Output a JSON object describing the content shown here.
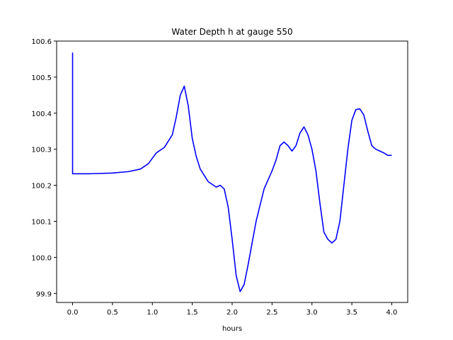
{
  "chart_data": {
    "type": "line",
    "title": "Water Depth h at gauge 550",
    "xlabel": "hours",
    "ylabel": "",
    "xlim": [
      -0.2,
      4.2
    ],
    "ylim": [
      99.875,
      100.6
    ],
    "xticks": [
      0.0,
      0.5,
      1.0,
      1.5,
      2.0,
      2.5,
      3.0,
      3.5,
      4.0
    ],
    "xtick_labels": [
      "0.0",
      "0.5",
      "1.0",
      "1.5",
      "2.0",
      "2.5",
      "3.0",
      "3.5",
      "4.0"
    ],
    "yticks": [
      99.9,
      100.0,
      100.1,
      100.2,
      100.3,
      100.4,
      100.5,
      100.6
    ],
    "ytick_labels": [
      "99.9",
      "100.0",
      "100.1",
      "100.2",
      "100.3",
      "100.4",
      "100.5",
      "100.6"
    ],
    "grid": false,
    "series": [
      {
        "color": "#0000ff",
        "x": [
          0.0,
          0.0,
          0.0,
          0.2,
          0.5,
          0.7,
          0.85,
          0.95,
          1.05,
          1.15,
          1.25,
          1.3,
          1.35,
          1.4,
          1.45,
          1.5,
          1.55,
          1.6,
          1.7,
          1.8,
          1.85,
          1.9,
          1.95,
          2.0,
          2.05,
          2.1,
          2.15,
          2.2,
          2.3,
          2.4,
          2.5,
          2.55,
          2.6,
          2.65,
          2.7,
          2.75,
          2.8,
          2.85,
          2.9,
          2.95,
          3.0,
          3.05,
          3.1,
          3.15,
          3.2,
          3.25,
          3.3,
          3.35,
          3.4,
          3.45,
          3.5,
          3.55,
          3.6,
          3.65,
          3.7,
          3.75,
          3.8,
          3.85,
          3.9,
          3.95,
          4.0
        ],
        "y": [
          100.568,
          100.232,
          100.232,
          100.232,
          100.234,
          100.238,
          100.245,
          100.26,
          100.29,
          100.305,
          100.34,
          100.39,
          100.45,
          100.475,
          100.42,
          100.33,
          100.28,
          100.245,
          100.21,
          100.195,
          100.2,
          100.19,
          100.14,
          100.05,
          99.95,
          99.905,
          99.925,
          99.98,
          100.1,
          100.19,
          100.24,
          100.27,
          100.31,
          100.32,
          100.31,
          100.295,
          100.31,
          100.345,
          100.362,
          100.34,
          100.3,
          100.24,
          100.15,
          100.07,
          100.05,
          100.04,
          100.05,
          100.1,
          100.2,
          100.3,
          100.38,
          100.41,
          100.412,
          100.395,
          100.35,
          100.31,
          100.3,
          100.295,
          100.29,
          100.283,
          100.283
        ]
      }
    ]
  }
}
